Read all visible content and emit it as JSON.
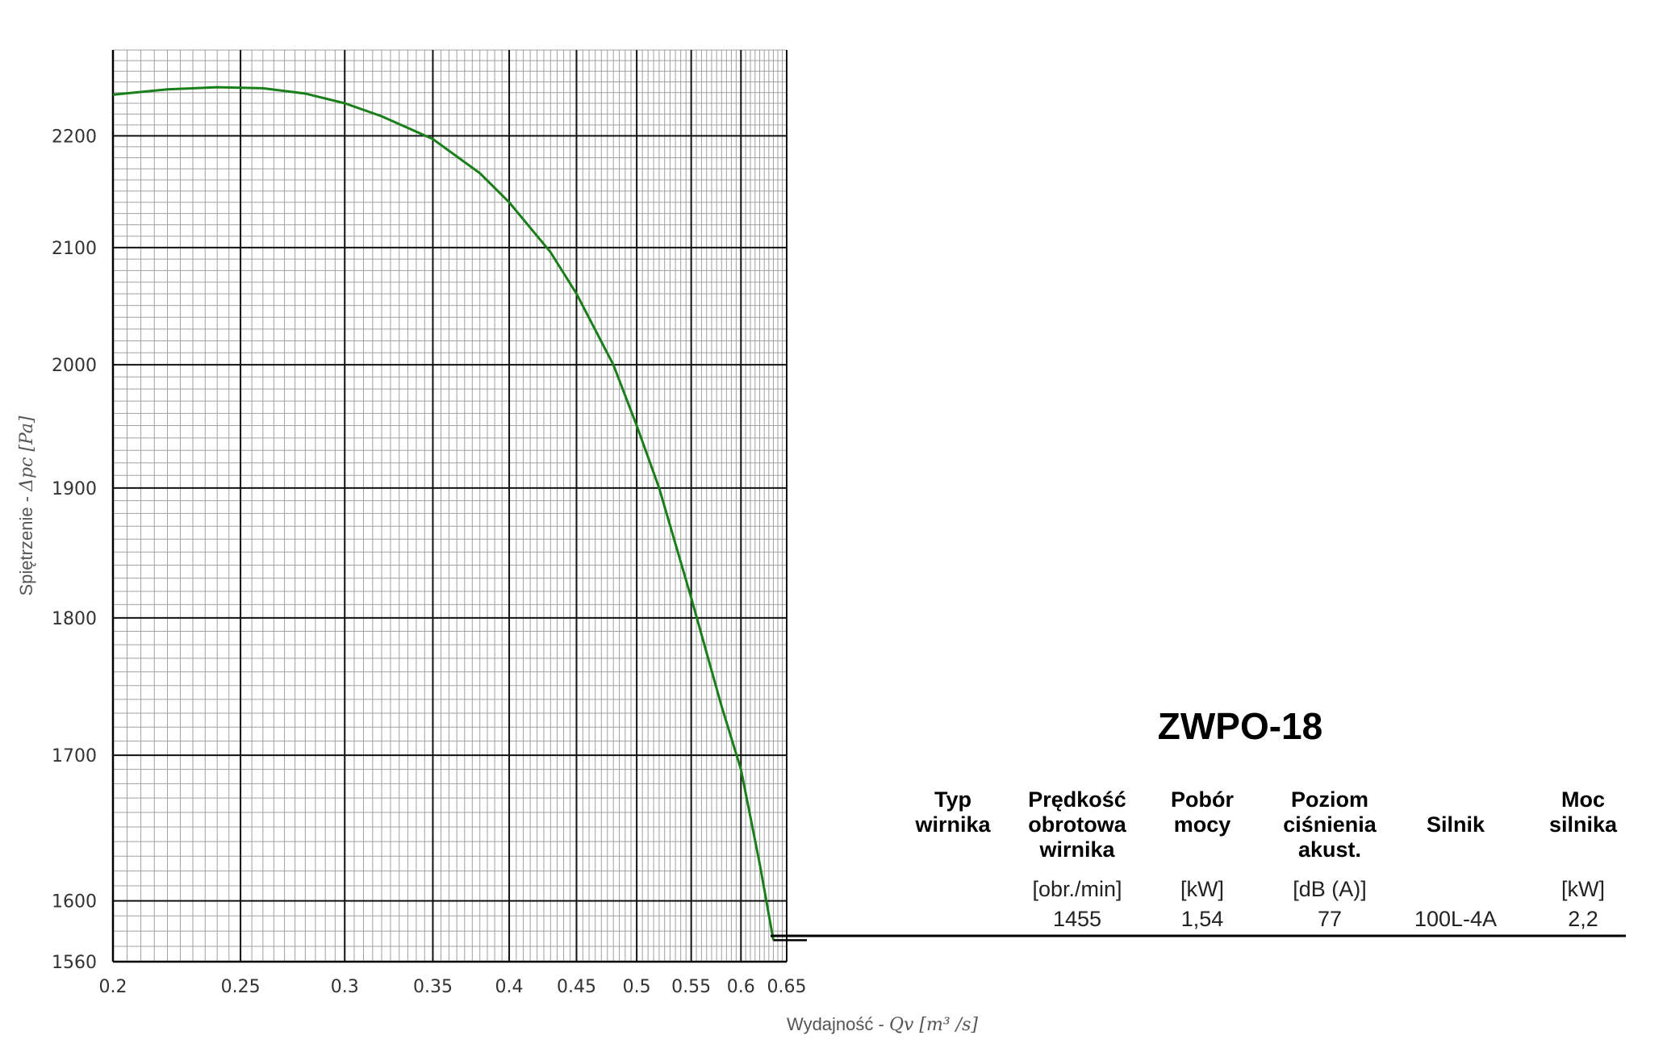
{
  "chart_data": {
    "type": "line",
    "xlabel_prefix": "Wydajność - ",
    "xlabel_math": "Qv [m³ /s]",
    "ylabel_prefix": "Spiętrzenie - ",
    "ylabel_math": "Δpc [Pa]",
    "x_scale": "log",
    "y_scale": "log",
    "xlim": [
      0.2,
      0.65
    ],
    "ylim": [
      1560,
      2280
    ],
    "grid": true,
    "x_ticks": [
      0.2,
      0.25,
      0.3,
      0.35,
      0.4,
      0.45,
      0.5,
      0.55,
      0.6,
      0.65
    ],
    "x_tick_labels": [
      "0.2",
      "0.25",
      "0.3",
      "0.35",
      "0.4",
      "0.45",
      "0.5",
      "0.55",
      "0.6",
      "0.65"
    ],
    "y_ticks": [
      1560,
      1600,
      1700,
      1800,
      1900,
      2000,
      2100,
      2200
    ],
    "y_tick_labels": [
      "1560",
      "1600",
      "1700",
      "1800",
      "1900",
      "2000",
      "2100",
      "2200"
    ],
    "line_color": "#1a7f1a",
    "series": [
      {
        "x": [
          0.2,
          0.22,
          0.24,
          0.26,
          0.28,
          0.3,
          0.32,
          0.35,
          0.38,
          0.4,
          0.43,
          0.45,
          0.48,
          0.5,
          0.52,
          0.55,
          0.58,
          0.6,
          0.62,
          0.635
        ],
        "y": [
          2238,
          2243,
          2245,
          2244,
          2239,
          2230,
          2218,
          2197,
          2166,
          2140,
          2096,
          2060,
          2000,
          1950,
          1900,
          1815,
          1735,
          1690,
          1625,
          1574
        ]
      }
    ],
    "end_marker": {
      "x": 0.635,
      "y": 1574
    }
  },
  "fan": {
    "title": "ZWPO-18",
    "headers": [
      [
        "Typ",
        "wirnika"
      ],
      [
        "Prędkość",
        "obrotowa",
        "wirnika"
      ],
      [
        "Pobór",
        "mocy"
      ],
      [
        "Poziom",
        "ciśnienia",
        "akust."
      ],
      [
        "Silnik"
      ],
      [
        "Moc",
        "silnika"
      ]
    ],
    "units": [
      "",
      "[obr./min]",
      "[kW]",
      "[dB (A)]",
      "",
      "[kW]"
    ],
    "values": [
      "",
      "1455",
      "1,54",
      "77",
      "100L-4A",
      "2,2"
    ]
  }
}
